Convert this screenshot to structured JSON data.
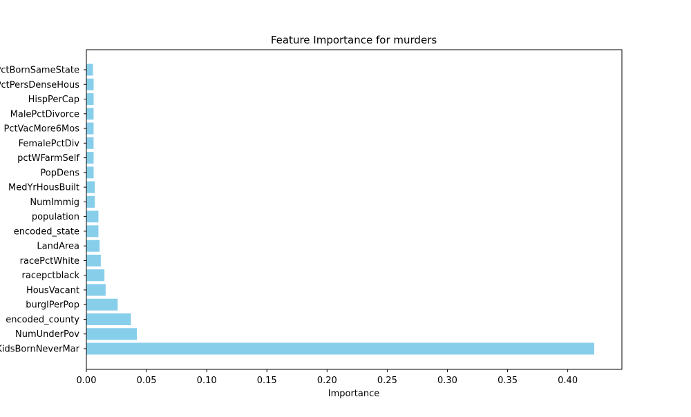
{
  "chart_data": {
    "type": "bar",
    "orientation": "horizontal",
    "title": "Feature Importance for murders",
    "xlabel": "Importance",
    "ylabel": "",
    "xlim": [
      0,
      0.445
    ],
    "xticks": [
      "0.00",
      "0.05",
      "0.10",
      "0.15",
      "0.20",
      "0.25",
      "0.30",
      "0.35",
      "0.40"
    ],
    "xtick_values": [
      0,
      0.05,
      0.1,
      0.15,
      0.2,
      0.25,
      0.3,
      0.35,
      0.4
    ],
    "grid": false,
    "legend": "none",
    "bar_color": "#87ceeb",
    "categories": [
      "PctKidsBornNeverMar",
      "NumUnderPov",
      "encoded_county",
      "burglPerPop",
      "HousVacant",
      "racepctblack",
      "racePctWhite",
      "LandArea",
      "encoded_state",
      "population",
      "NumImmig",
      "MedYrHousBuilt",
      "PopDens",
      "pctWFarmSelf",
      "FemalePctDiv",
      "PctVacMore6Mos",
      "MalePctDivorce",
      "HispPerCap",
      "PctPersDenseHous",
      "PctBornSameState"
    ],
    "values": [
      0.422,
      0.042,
      0.037,
      0.026,
      0.016,
      0.015,
      0.012,
      0.011,
      0.01,
      0.01,
      0.007,
      0.007,
      0.006,
      0.006,
      0.006,
      0.006,
      0.006,
      0.006,
      0.006,
      0.0055
    ]
  }
}
